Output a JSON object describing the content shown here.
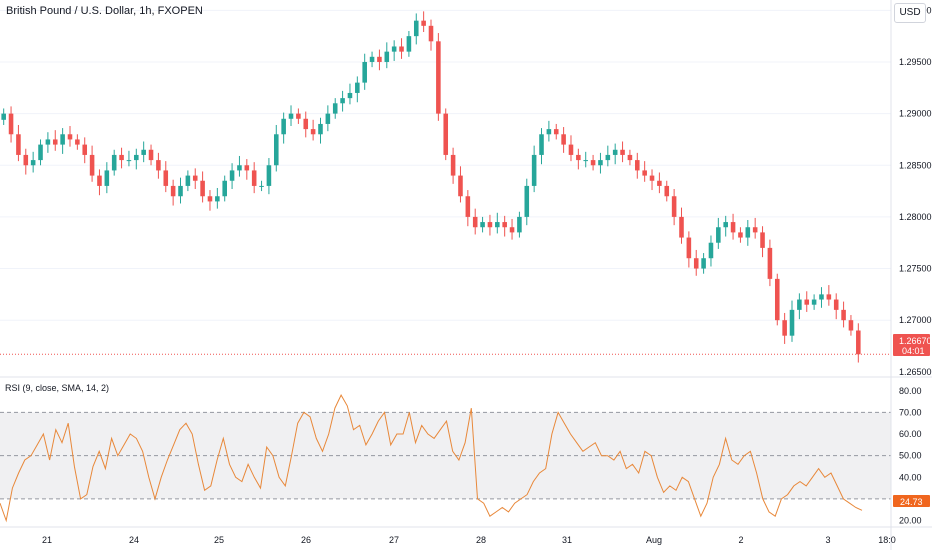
{
  "header": {
    "symbol_title": "British Pound / U.S. Dollar, 1h, FXOPEN",
    "currency_button": "USD"
  },
  "colors": {
    "up": "#26a69a",
    "down": "#ef5350",
    "rsi_line": "#e8883a",
    "price_label_bg": "#ef5350",
    "rsi_label_bg": "#f0661e"
  },
  "price_axis": {
    "ticks": [
      "1.30000",
      "1.29500",
      "1.29000",
      "1.28500",
      "1.28000",
      "1.27500",
      "1.27000"
    ],
    "tick_values": [
      1.3,
      1.295,
      1.29,
      1.285,
      1.28,
      1.275,
      1.27
    ],
    "partial_tick": "1.26500"
  },
  "last_price": {
    "value": "1.26670",
    "countdown": "04:01"
  },
  "rsi_panel": {
    "title": "RSI (9, close, SMA, 14, 2)",
    "ticks": [
      "80.00",
      "70.00",
      "60.00",
      "50.00",
      "40.00",
      "30.00",
      "20.00"
    ],
    "tick_values": [
      80,
      70,
      60,
      50,
      40,
      30,
      20
    ],
    "last_value": "24.73",
    "levels": [
      70,
      50,
      30
    ]
  },
  "time_axis": {
    "labels": [
      "21",
      "24",
      "25",
      "26",
      "27",
      "28",
      "31",
      "Aug",
      "2",
      "3",
      "18:0"
    ]
  },
  "chart_data": [
    {
      "type": "candlestick",
      "title": "British Pound / U.S. Dollar, 1h, FXOPEN",
      "ylim": [
        1.2645,
        1.301
      ],
      "close_path": [
        1.29,
        1.288,
        1.286,
        1.285,
        1.2855,
        1.287,
        1.2875,
        1.287,
        1.288,
        1.2875,
        1.287,
        1.286,
        1.284,
        1.283,
        1.2845,
        1.286,
        1.2855,
        1.2855,
        1.286,
        1.2865,
        1.2855,
        1.2845,
        1.283,
        1.282,
        1.283,
        1.284,
        1.2835,
        1.282,
        1.2815,
        1.282,
        1.2835,
        1.2845,
        1.285,
        1.2845,
        1.283,
        1.283,
        1.285,
        1.288,
        1.2895,
        1.29,
        1.2895,
        1.2885,
        1.288,
        1.289,
        1.29,
        1.291,
        1.2915,
        1.292,
        1.293,
        1.295,
        1.2955,
        1.295,
        1.296,
        1.2965,
        1.296,
        1.2975,
        1.299,
        1.2985,
        1.297,
        1.29,
        1.286,
        1.284,
        1.282,
        1.28,
        1.279,
        1.2795,
        1.279,
        1.2795,
        1.279,
        1.2785,
        1.28,
        1.283,
        1.286,
        1.288,
        1.2885,
        1.288,
        1.287,
        1.286,
        1.2855,
        1.2855,
        1.285,
        1.2855,
        1.286,
        1.2865,
        1.286,
        1.2855,
        1.2845,
        1.284,
        1.2835,
        1.283,
        1.282,
        1.28,
        1.278,
        1.276,
        1.275,
        1.276,
        1.2775,
        1.279,
        1.2795,
        1.2785,
        1.278,
        1.279,
        1.2785,
        1.277,
        1.274,
        1.27,
        1.2685,
        1.271,
        1.272,
        1.2715,
        1.272,
        1.2725,
        1.272,
        1.271,
        1.27,
        1.269,
        1.2667
      ],
      "time_labels": [
        "21",
        "24",
        "25",
        "26",
        "27",
        "28",
        "31",
        "Aug",
        "2",
        "3",
        "18:0"
      ],
      "last": 1.2667
    },
    {
      "type": "line",
      "title": "RSI (9, close, SMA, 14, 2)",
      "ylim": [
        17,
        85
      ],
      "levels": [
        70,
        50,
        30
      ],
      "values": [
        28,
        20,
        35,
        42,
        48,
        50,
        55,
        60,
        48,
        62,
        56,
        65,
        45,
        30,
        32,
        45,
        52,
        44,
        58,
        50,
        55,
        60,
        58,
        52,
        40,
        30,
        40,
        48,
        55,
        62,
        65,
        60,
        46,
        34,
        36,
        48,
        58,
        46,
        40,
        38,
        46,
        40,
        35,
        54,
        50,
        40,
        36,
        50,
        65,
        70,
        68,
        58,
        52,
        60,
        72,
        78,
        73,
        62,
        64,
        55,
        60,
        66,
        70,
        55,
        60,
        60,
        70,
        56,
        64,
        60,
        58,
        62,
        66,
        52,
        48,
        56,
        72,
        30,
        28,
        22,
        24,
        26,
        24,
        28,
        30,
        32,
        38,
        42,
        44,
        60,
        70,
        65,
        60,
        56,
        52,
        54,
        56,
        50,
        50,
        48,
        52,
        44,
        46,
        42,
        52,
        50,
        40,
        33,
        36,
        34,
        40,
        38,
        30,
        22,
        28,
        40,
        46,
        58,
        48,
        46,
        50,
        52,
        42,
        30,
        24,
        22,
        30,
        32,
        36,
        38,
        36,
        40,
        44,
        40,
        42,
        36,
        30,
        28,
        26,
        24.73
      ],
      "last": 24.73
    }
  ]
}
